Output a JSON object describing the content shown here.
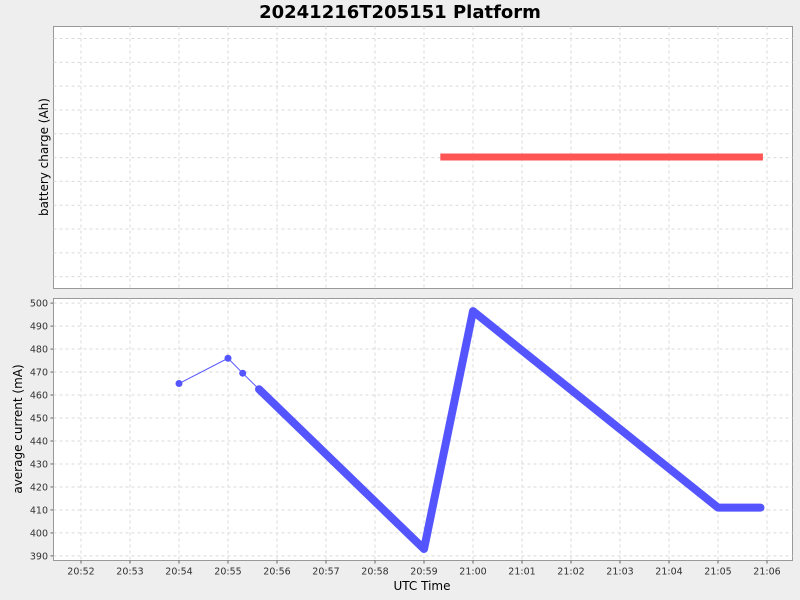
{
  "chart_data": {
    "type": "line",
    "title": "20241216T205151 Platform",
    "xlabel": "UTC Time",
    "x_tick_labels": [
      "20:52",
      "20:53",
      "20:54",
      "20:55",
      "20:56",
      "20:57",
      "20:58",
      "20:59",
      "21:00",
      "21:01",
      "21:02",
      "21:03",
      "21:04",
      "21:05",
      "21:06"
    ],
    "grid": true,
    "panels": [
      {
        "ylabel": "battery charge (Ah)",
        "y_ticks": [],
        "series": [
          {
            "color": "#ff5555",
            "style": "thick-line",
            "points": [
              {
                "t": "20:59:20",
                "y": 0
              },
              {
                "t": "21:05:55",
                "y": 0
              }
            ]
          }
        ]
      },
      {
        "ylabel": "average current (mA)",
        "ylim": [
          388,
          502
        ],
        "y_ticks": [
          390,
          400,
          410,
          420,
          430,
          440,
          450,
          460,
          470,
          480,
          490,
          500
        ],
        "series": [
          {
            "color": "#5555ff",
            "style": "line-markers",
            "points": [
              {
                "t": "20:54:00",
                "y": 465
              },
              {
                "t": "20:55:00",
                "y": 476
              },
              {
                "t": "20:55:18",
                "y": 469.5
              },
              {
                "t": "20:55:38",
                "y": 462.5
              },
              {
                "t": "20:59:00",
                "y": 393
              },
              {
                "t": "21:00:00",
                "y": 496.5
              },
              {
                "t": "21:05:00",
                "y": 411
              },
              {
                "t": "21:05:52",
                "y": 411
              }
            ],
            "dense_from_index": 3
          }
        ]
      }
    ]
  }
}
